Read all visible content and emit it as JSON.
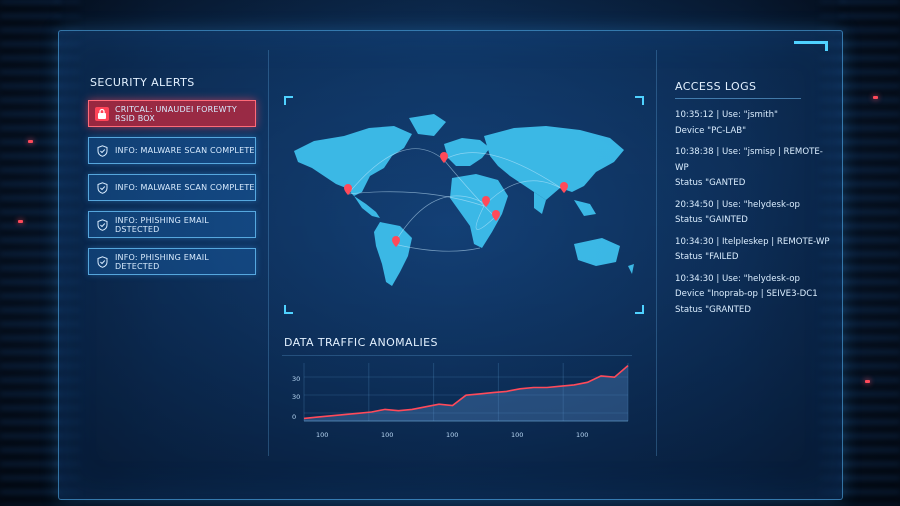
{
  "alerts_panel": {
    "title": "SECURITY ALERTS",
    "items": [
      {
        "level": "critical",
        "icon": "lock-icon",
        "text": "CRITCAL: UNAUDEI FOREWTY RSID BOX"
      },
      {
        "level": "info",
        "icon": "shield-icon",
        "text": "INFO: MALWARE SCAN COMPLETE"
      },
      {
        "level": "info",
        "icon": "shield-icon",
        "text": "INFO: MALWARE SCAN COMPLETE"
      },
      {
        "level": "info",
        "icon": "shield-icon",
        "text": "INFO: PHISHING EMAIL DSTECTED"
      },
      {
        "level": "info",
        "icon": "shield-icon",
        "text": "INFO: PHISHING EMAIL DETECTED"
      }
    ]
  },
  "map": {
    "marker_color": "#ff4a5a",
    "land_color": "#3fc3f0"
  },
  "traffic": {
    "title": "DATA TRAFFIC ANOMALIES",
    "chart_data": {
      "type": "area",
      "y_tick_labels": [
        "30",
        "30",
        "0"
      ],
      "x_tick_labels": [
        "100",
        "100",
        "100",
        "100",
        "100"
      ],
      "series": [
        {
          "values": [
            2,
            3,
            4,
            5,
            6,
            7,
            9,
            8,
            9,
            11,
            13,
            12,
            20,
            21,
            22,
            23,
            25,
            26,
            26,
            27,
            28,
            30,
            35,
            34,
            43
          ]
        }
      ],
      "line_color": "#ff4a5a",
      "grid": true
    }
  },
  "logs_panel": {
    "title": "ACCESS LOGS",
    "entries": [
      {
        "lines": [
          "10:35:12 | Use: \"jsmith\"",
          "Device \"PC-LAB\""
        ]
      },
      {
        "lines": [
          "10:38:38 | Use: \"jsmisp | REMOTE-WP",
          "Status \"GANTED"
        ]
      },
      {
        "lines": [
          "20:34:50 | Use: \"helydesk-op",
          "Status \"GAINTED"
        ]
      },
      {
        "lines": [
          "10:34:30 | Itelpleskep | REMOTE-WP",
          "Status \"FAILED"
        ]
      },
      {
        "lines": [
          "10:34:30 | Use: \"helydesk-op",
          "Device \"Inoprab-op | SEIVE3-DC1",
          "Status \"GRANTED"
        ]
      }
    ]
  }
}
